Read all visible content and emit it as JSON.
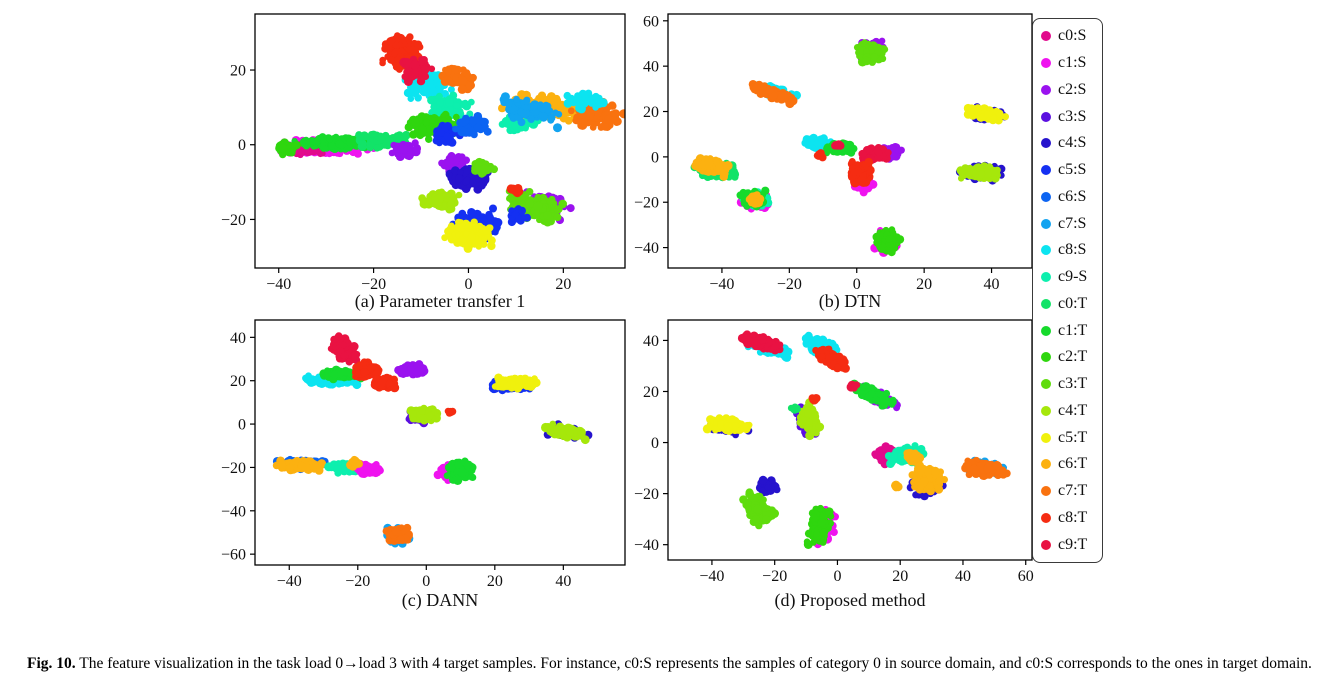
{
  "figure": {
    "caption_label": "Fig. 10.",
    "caption_text": "The feature visualization in the task load 0→load 3 with 4 target samples. For instance, c0:S represents the samples of category 0 in source domain, and c0:S corresponds to the ones in target domain."
  },
  "palette": {
    "c0S": "#e10a8c",
    "c1S": "#ef13ef",
    "c2S": "#9a12ef",
    "c3S": "#5b10e0",
    "c4S": "#2613cd",
    "c5S": "#1430f2",
    "c6S": "#0c64f2",
    "c7S": "#12a3f0",
    "c8S": "#0ce4f0",
    "c9S": "#0defae",
    "c0T": "#12e368",
    "c1T": "#16da2c",
    "c2T": "#2fd60e",
    "c3T": "#5fdc0d",
    "c4T": "#a6e70b",
    "c5T": "#f0f10d",
    "c6T": "#fcb110",
    "c7T": "#f9720f",
    "c8T": "#f52c12",
    "c9T": "#e91242"
  },
  "legend": {
    "items": [
      {
        "label": "c0:S",
        "c": "c0S"
      },
      {
        "label": "c1:S",
        "c": "c1S"
      },
      {
        "label": "c2:S",
        "c": "c2S"
      },
      {
        "label": "c3:S",
        "c": "c3S"
      },
      {
        "label": "c4:S",
        "c": "c4S"
      },
      {
        "label": "c5:S",
        "c": "c5S"
      },
      {
        "label": "c6:S",
        "c": "c6S"
      },
      {
        "label": "c7:S",
        "c": "c7S"
      },
      {
        "label": "c8:S",
        "c": "c8S"
      },
      {
        "label": "c9-S",
        "c": "c9S"
      },
      {
        "label": "c0:T",
        "c": "c0T"
      },
      {
        "label": "c1:T",
        "c": "c1T"
      },
      {
        "label": "c2:T",
        "c": "c2T"
      },
      {
        "label": "c3:T",
        "c": "c3T"
      },
      {
        "label": "c4:T",
        "c": "c4T"
      },
      {
        "label": "c5:T",
        "c": "c5T"
      },
      {
        "label": "c6:T",
        "c": "c6T"
      },
      {
        "label": "c7:T",
        "c": "c7T"
      },
      {
        "label": "c8:T",
        "c": "c8T"
      },
      {
        "label": "c9:T",
        "c": "c9T"
      }
    ]
  },
  "chart_data": [
    {
      "type": "scatter",
      "id": "a",
      "title": "(a) Parameter transfer 1",
      "xlim": [
        -45,
        33
      ],
      "ylim": [
        -33,
        35
      ],
      "xticks": [
        -40,
        -20,
        0,
        20
      ],
      "yticks": [
        -20,
        0,
        20
      ],
      "clusters": [
        {
          "c": "c1S",
          "x": -30,
          "y": -0.5,
          "rx": 13,
          "ry": 2.4,
          "n": 190
        },
        {
          "c": "c0S",
          "x": -34,
          "y": -1,
          "rx": 5,
          "ry": 2,
          "n": 45
        },
        {
          "c": "c1T",
          "x": -27,
          "y": 0.5,
          "rx": 12,
          "ry": 2.4,
          "n": 150
        },
        {
          "c": "c0T",
          "x": -18,
          "y": 1,
          "rx": 8,
          "ry": 2.6,
          "n": 80
        },
        {
          "c": "c2T",
          "x": -38,
          "y": -1,
          "rx": 3,
          "ry": 2,
          "n": 40
        },
        {
          "c": "c2S",
          "x": -13,
          "y": -1.5,
          "rx": 4,
          "ry": 2.5,
          "n": 45
        },
        {
          "c": "c8S",
          "x": -9,
          "y": 16,
          "rx": 6,
          "ry": 5,
          "n": 130
        },
        {
          "c": "c9S",
          "x": -4,
          "y": 10,
          "rx": 6,
          "ry": 4,
          "n": 90
        },
        {
          "c": "c2T",
          "x": -7,
          "y": 5,
          "rx": 8,
          "ry": 4,
          "n": 120
        },
        {
          "c": "c5S",
          "x": -4,
          "y": 3,
          "rx": 5,
          "ry": 3.5,
          "n": 60
        },
        {
          "c": "c6S",
          "x": 1,
          "y": 5,
          "rx": 5,
          "ry": 3,
          "n": 60
        },
        {
          "c": "c9S",
          "x": 11,
          "y": 6,
          "rx": 5,
          "ry": 2.5,
          "n": 60
        },
        {
          "c": "c8T",
          "x": -14,
          "y": 25,
          "rx": 5,
          "ry": 5.5,
          "n": 150
        },
        {
          "c": "c9T",
          "x": -11,
          "y": 20,
          "rx": 4,
          "ry": 4,
          "n": 70
        },
        {
          "c": "c7T",
          "x": -2,
          "y": 18,
          "rx": 4.5,
          "ry": 2.8,
          "n": 85,
          "a": -35
        },
        {
          "c": "c6T",
          "x": 16,
          "y": 10,
          "rx": 10,
          "ry": 4,
          "n": 140,
          "a": -12
        },
        {
          "c": "c7S",
          "x": 13,
          "y": 9,
          "rx": 9,
          "ry": 4,
          "n": 90,
          "a": -12
        },
        {
          "c": "c7T",
          "x": 27,
          "y": 8,
          "rx": 7,
          "ry": 4.5,
          "n": 120,
          "a": -10
        },
        {
          "c": "c8S",
          "x": 25,
          "y": 12,
          "rx": 5,
          "ry": 3,
          "n": 45
        },
        {
          "c": "c2S",
          "x": -3,
          "y": -5,
          "rx": 4,
          "ry": 3,
          "n": 50
        },
        {
          "c": "c4S",
          "x": 0,
          "y": -9,
          "rx": 5,
          "ry": 4,
          "n": 130
        },
        {
          "c": "c3T",
          "x": 3,
          "y": -6,
          "rx": 3,
          "ry": 2.5,
          "n": 35
        },
        {
          "c": "c4T",
          "x": -6,
          "y": -15,
          "rx": 4.5,
          "ry": 3,
          "n": 115
        },
        {
          "c": "c5S",
          "x": 2,
          "y": -21,
          "rx": 6,
          "ry": 4.5,
          "n": 75
        },
        {
          "c": "c5T",
          "x": 0,
          "y": -24,
          "rx": 6,
          "ry": 4.5,
          "n": 150
        },
        {
          "c": "c2S",
          "x": 16,
          "y": -16,
          "rx": 7,
          "ry": 4,
          "n": 85,
          "a": -15
        },
        {
          "c": "c3T",
          "x": 14,
          "y": -17,
          "rx": 8,
          "ry": 4.5,
          "n": 145,
          "a": -15
        },
        {
          "c": "c5S",
          "x": 10,
          "y": -19,
          "rx": 3,
          "ry": 3,
          "n": 25
        },
        {
          "c": "c8T",
          "x": 10,
          "y": -12,
          "rx": 1.6,
          "ry": 1.4,
          "n": 12
        }
      ]
    },
    {
      "type": "scatter",
      "id": "b",
      "title": "(b) DTN",
      "xlim": [
        -56,
        52
      ],
      "ylim": [
        -49,
        63
      ],
      "xticks": [
        -40,
        -20,
        0,
        20,
        40
      ],
      "yticks": [
        -40,
        -20,
        0,
        20,
        40,
        60
      ],
      "clusters": [
        {
          "c": "c2S",
          "x": 4,
          "y": 47,
          "rx": 5.5,
          "ry": 5.5,
          "n": 60
        },
        {
          "c": "c3T",
          "x": 4,
          "y": 46,
          "rx": 5,
          "ry": 5,
          "n": 145
        },
        {
          "c": "c8S",
          "x": -25,
          "y": 29,
          "rx": 9,
          "ry": 2.6,
          "n": 70,
          "a": -28
        },
        {
          "c": "c7T",
          "x": -25,
          "y": 28,
          "rx": 8.5,
          "ry": 2.2,
          "n": 150,
          "a": -28
        },
        {
          "c": "c4S",
          "x": 38,
          "y": 19,
          "rx": 7.5,
          "ry": 3.5,
          "n": 60,
          "a": -15
        },
        {
          "c": "c5T",
          "x": 38,
          "y": 19,
          "rx": 7,
          "ry": 3,
          "n": 140,
          "a": -15
        },
        {
          "c": "c8S",
          "x": -12,
          "y": 6,
          "rx": 5,
          "ry": 2.6,
          "n": 80
        },
        {
          "c": "c1T",
          "x": -5,
          "y": 4,
          "rx": 5,
          "ry": 3,
          "n": 110
        },
        {
          "c": "c2S",
          "x": 10,
          "y": 2,
          "rx": 4,
          "ry": 3.5,
          "n": 55
        },
        {
          "c": "c1S",
          "x": 2,
          "y": -12,
          "rx": 4,
          "ry": 4,
          "n": 55
        },
        {
          "c": "c9T",
          "x": 5,
          "y": 1,
          "rx": 5.5,
          "ry": 4,
          "n": 135
        },
        {
          "c": "c8T",
          "x": 1,
          "y": -7,
          "rx": 4,
          "ry": 6,
          "n": 130
        },
        {
          "c": "c9T",
          "x": -6,
          "y": 5,
          "rx": 1.5,
          "ry": 1.2,
          "n": 6
        },
        {
          "c": "c8T",
          "x": -11,
          "y": 1,
          "rx": 1.5,
          "ry": 1.5,
          "n": 6
        },
        {
          "c": "c0T",
          "x": -42,
          "y": -6,
          "rx": 7,
          "ry": 5,
          "n": 80
        },
        {
          "c": "c6T",
          "x": -43,
          "y": -4,
          "rx": 6.5,
          "ry": 4,
          "n": 135,
          "a": -20
        },
        {
          "c": "c1S",
          "x": -30,
          "y": -20,
          "rx": 5,
          "ry": 5,
          "n": 50
        },
        {
          "c": "c9S",
          "x": -30,
          "y": -19,
          "rx": 5,
          "ry": 4.5,
          "n": 60
        },
        {
          "c": "c1T",
          "x": -31,
          "y": -18,
          "rx": 4.5,
          "ry": 4.5,
          "n": 60
        },
        {
          "c": "c6T",
          "x": -30,
          "y": -19,
          "rx": 3,
          "ry": 3,
          "n": 28
        },
        {
          "c": "c4S",
          "x": 37,
          "y": -7,
          "rx": 8,
          "ry": 4,
          "n": 60
        },
        {
          "c": "c4T",
          "x": 37,
          "y": -7,
          "rx": 7.5,
          "ry": 3.5,
          "n": 140
        },
        {
          "c": "c1S",
          "x": 9,
          "y": -38,
          "rx": 5,
          "ry": 6,
          "n": 55
        },
        {
          "c": "c2T",
          "x": 9,
          "y": -37,
          "rx": 4.5,
          "ry": 5.5,
          "n": 135
        }
      ]
    },
    {
      "type": "scatter",
      "id": "c",
      "title": "(c) DANN",
      "xlim": [
        -50,
        58
      ],
      "ylim": [
        -65,
        48
      ],
      "xticks": [
        -40,
        -20,
        0,
        20,
        40
      ],
      "yticks": [
        -60,
        -40,
        -20,
        0,
        20,
        40
      ],
      "clusters": [
        {
          "c": "c8S",
          "x": -28,
          "y": 20,
          "rx": 9,
          "ry": 3,
          "n": 115
        },
        {
          "c": "c1T",
          "x": -25,
          "y": 23,
          "rx": 7,
          "ry": 2.6,
          "n": 85
        },
        {
          "c": "c9T",
          "x": -24,
          "y": 34,
          "rx": 4,
          "ry": 7.5,
          "n": 125,
          "a": 25
        },
        {
          "c": "c8T",
          "x": -17,
          "y": 25,
          "rx": 5,
          "ry": 4,
          "n": 95
        },
        {
          "c": "c8T",
          "x": -12,
          "y": 19,
          "rx": 4.5,
          "ry": 3,
          "n": 80
        },
        {
          "c": "c2S",
          "x": -4,
          "y": 25,
          "rx": 5.5,
          "ry": 3,
          "n": 115
        },
        {
          "c": "c5S",
          "x": 25,
          "y": 18,
          "rx": 8,
          "ry": 3.5,
          "n": 60
        },
        {
          "c": "c5T",
          "x": 26,
          "y": 19,
          "rx": 7.5,
          "ry": 3,
          "n": 135
        },
        {
          "c": "c3S",
          "x": -1,
          "y": 4,
          "rx": 6,
          "ry": 4,
          "n": 60
        },
        {
          "c": "c4T",
          "x": -1,
          "y": 4,
          "rx": 5.5,
          "ry": 3.6,
          "n": 135
        },
        {
          "c": "c8T",
          "x": 7,
          "y": 5,
          "rx": 1.4,
          "ry": 1.4,
          "n": 8
        },
        {
          "c": "c4S",
          "x": 41,
          "y": -4,
          "rx": 8,
          "ry": 3.5,
          "n": 60,
          "a": -18
        },
        {
          "c": "c4T",
          "x": 41,
          "y": -4,
          "rx": 7.5,
          "ry": 3,
          "n": 135,
          "a": -18
        },
        {
          "c": "c6S",
          "x": -36,
          "y": -18,
          "rx": 9,
          "ry": 3,
          "n": 60
        },
        {
          "c": "c6T",
          "x": -37,
          "y": -19,
          "rx": 8,
          "ry": 2.8,
          "n": 145
        },
        {
          "c": "c9S",
          "x": -23,
          "y": -20,
          "rx": 6,
          "ry": 3,
          "n": 95
        },
        {
          "c": "c1S",
          "x": -17,
          "y": -21,
          "rx": 4,
          "ry": 3,
          "n": 65
        },
        {
          "c": "c6T",
          "x": -21,
          "y": -18,
          "rx": 2,
          "ry": 2,
          "n": 18
        },
        {
          "c": "c1S",
          "x": 7,
          "y": -22,
          "rx": 4,
          "ry": 5,
          "n": 55
        },
        {
          "c": "c1T",
          "x": 10,
          "y": -21,
          "rx": 4.5,
          "ry": 6,
          "n": 135
        },
        {
          "c": "c7S",
          "x": -8,
          "y": -51,
          "rx": 4.5,
          "ry": 5,
          "n": 60
        },
        {
          "c": "c7T",
          "x": -8,
          "y": -51,
          "rx": 4,
          "ry": 4.5,
          "n": 135
        }
      ]
    },
    {
      "type": "scatter",
      "id": "d",
      "title": "(d) Proposed method",
      "xlim": [
        -54,
        62
      ],
      "ylim": [
        -46,
        48
      ],
      "xticks": [
        -40,
        -20,
        0,
        20,
        40,
        60
      ],
      "yticks": [
        -40,
        -20,
        0,
        20,
        40
      ],
      "clusters": [
        {
          "c": "c8S",
          "x": -22,
          "y": 37,
          "rx": 9,
          "ry": 3,
          "n": 70,
          "a": -20
        },
        {
          "c": "c9T",
          "x": -24,
          "y": 39,
          "rx": 8,
          "ry": 2.8,
          "n": 145,
          "a": -20
        },
        {
          "c": "c8S",
          "x": -5,
          "y": 37,
          "rx": 7,
          "ry": 4,
          "n": 115,
          "a": -30
        },
        {
          "c": "c8T",
          "x": -2,
          "y": 33,
          "rx": 7,
          "ry": 3,
          "n": 125,
          "a": -35
        },
        {
          "c": "c2S",
          "x": 13,
          "y": 18,
          "rx": 9,
          "ry": 3,
          "n": 70,
          "a": -32
        },
        {
          "c": "c1T",
          "x": 11,
          "y": 19,
          "rx": 9,
          "ry": 3,
          "n": 135,
          "a": -32
        },
        {
          "c": "c9T",
          "x": 5,
          "y": 22,
          "rx": 1.5,
          "ry": 1.5,
          "n": 8
        },
        {
          "c": "c3S",
          "x": -10,
          "y": 8,
          "rx": 3.5,
          "ry": 7,
          "n": 60,
          "a": 20
        },
        {
          "c": "c4T",
          "x": -9,
          "y": 9,
          "rx": 3.5,
          "ry": 7,
          "n": 135,
          "a": 20
        },
        {
          "c": "c8T",
          "x": -7,
          "y": 17,
          "rx": 1.5,
          "ry": 1.5,
          "n": 8
        },
        {
          "c": "c0T",
          "x": -14,
          "y": 13,
          "rx": 1.4,
          "ry": 1.4,
          "n": 5
        },
        {
          "c": "c4S",
          "x": -35,
          "y": 6,
          "rx": 9,
          "ry": 3.5,
          "n": 60,
          "a": -10
        },
        {
          "c": "c5T",
          "x": -35,
          "y": 7,
          "rx": 8.5,
          "ry": 3,
          "n": 150,
          "a": -10
        },
        {
          "c": "c4S",
          "x": -22,
          "y": -17,
          "rx": 4,
          "ry": 3,
          "n": 40
        },
        {
          "c": "c3T",
          "x": -25,
          "y": -26,
          "rx": 4.5,
          "ry": 8,
          "n": 145,
          "a": 30
        },
        {
          "c": "c1S",
          "x": -4,
          "y": -33,
          "rx": 4,
          "ry": 9,
          "n": 70,
          "a": -8
        },
        {
          "c": "c2T",
          "x": -6,
          "y": -33,
          "rx": 4,
          "ry": 9,
          "n": 135,
          "a": -8
        },
        {
          "c": "c0S",
          "x": 16,
          "y": -5,
          "rx": 5,
          "ry": 4,
          "n": 60
        },
        {
          "c": "c9S",
          "x": 22,
          "y": -5,
          "rx": 7,
          "ry": 4,
          "n": 135
        },
        {
          "c": "c6T",
          "x": 24,
          "y": -6,
          "rx": 3,
          "ry": 3,
          "n": 30
        },
        {
          "c": "c4S",
          "x": 28,
          "y": -18,
          "rx": 6,
          "ry": 5,
          "n": 50
        },
        {
          "c": "c6T",
          "x": 29,
          "y": -14,
          "rx": 6,
          "ry": 6,
          "n": 145
        },
        {
          "c": "c6T",
          "x": 19,
          "y": -17,
          "rx": 1.5,
          "ry": 1.5,
          "n": 6
        },
        {
          "c": "c7S",
          "x": 47,
          "y": -10,
          "rx": 9,
          "ry": 4,
          "n": 60,
          "a": -10
        },
        {
          "c": "c7T",
          "x": 47,
          "y": -10,
          "rx": 8,
          "ry": 3.5,
          "n": 135,
          "a": -10
        }
      ]
    }
  ]
}
